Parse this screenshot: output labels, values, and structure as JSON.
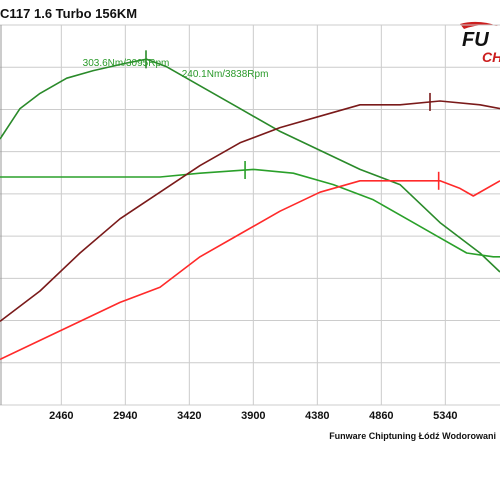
{
  "header": {
    "title": "C117  1.6 Turbo 156KM",
    "credit": "Funware Chiptuning Łódź Wodorowani"
  },
  "logo": {
    "text_top": "FU",
    "text_bottom": "CH"
  },
  "colors": {
    "power_tuned": "#7a1a1a",
    "power_stock": "#ff2a2a",
    "torque_tuned": "#2a8a2a",
    "torque_stock": "#2aa02a",
    "grid": "#cccccc"
  },
  "chart_data": {
    "type": "line",
    "xlim": [
      2000,
      5750
    ],
    "x_ticks": [
      "2460",
      "2940",
      "3420",
      "3900",
      "4380",
      "4860",
      "5340"
    ],
    "grid": true,
    "series": [
      {
        "key": "torque_tuned",
        "x": [
          2000,
          2150,
          2300,
          2500,
          2700,
          2950,
          3100,
          3250,
          3500,
          3800,
          4100,
          4400,
          4700,
          5000,
          5300,
          5600,
          5750
        ],
        "y": [
          0.3,
          0.22,
          0.18,
          0.14,
          0.12,
          0.1,
          0.09,
          0.11,
          0.16,
          0.22,
          0.28,
          0.33,
          0.38,
          0.42,
          0.52,
          0.6,
          0.65
        ]
      },
      {
        "key": "torque_stock",
        "x": [
          2000,
          2200,
          2500,
          2800,
          3200,
          3500,
          3900,
          4200,
          4500,
          4800,
          5100,
          5300,
          5500,
          5700,
          5750
        ],
        "y": [
          0.4,
          0.4,
          0.4,
          0.4,
          0.4,
          0.39,
          0.38,
          0.39,
          0.42,
          0.46,
          0.52,
          0.56,
          0.6,
          0.61,
          0.61
        ]
      },
      {
        "key": "power_tuned",
        "x": [
          2000,
          2300,
          2600,
          2900,
          3200,
          3500,
          3800,
          4100,
          4400,
          4700,
          5000,
          5300,
          5600,
          5750
        ],
        "y": [
          0.78,
          0.7,
          0.6,
          0.51,
          0.44,
          0.37,
          0.31,
          0.27,
          0.24,
          0.21,
          0.21,
          0.2,
          0.21,
          0.22
        ]
      },
      {
        "key": "power_stock",
        "x": [
          2000,
          2300,
          2600,
          2900,
          3200,
          3500,
          3800,
          4100,
          4400,
          4700,
          5000,
          5300,
          5450,
          5550,
          5750
        ],
        "y": [
          0.88,
          0.83,
          0.78,
          0.73,
          0.69,
          0.61,
          0.55,
          0.49,
          0.44,
          0.41,
          0.41,
          0.41,
          0.43,
          0.45,
          0.41
        ]
      }
    ],
    "annotations": [
      {
        "text": "303.6Nm/3095Rpm",
        "x": 3095,
        "series": "torque_tuned"
      },
      {
        "text": "240.1Nm/3838Rpm",
        "x": 3838,
        "series": "torque_stock"
      }
    ],
    "markers": [
      {
        "series": "torque_tuned",
        "x": 3095
      },
      {
        "series": "torque_stock",
        "x": 3838
      },
      {
        "series": "power_tuned",
        "x": 5225
      },
      {
        "series": "power_stock",
        "x": 5290
      }
    ]
  }
}
